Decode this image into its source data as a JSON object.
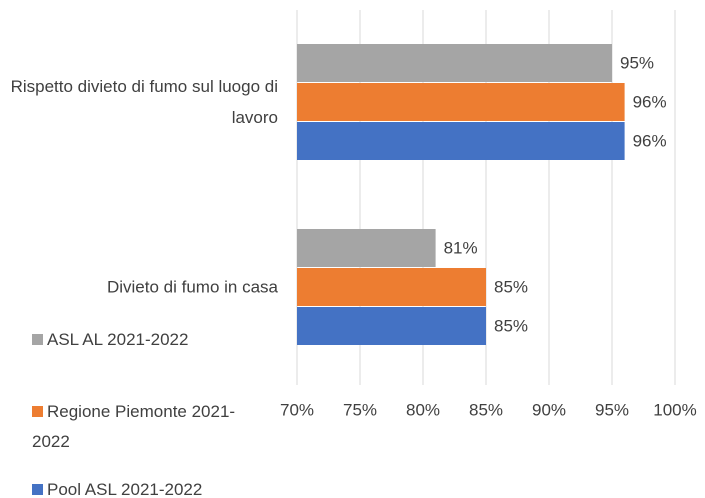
{
  "chart_data": {
    "type": "bar",
    "orientation": "horizontal",
    "categories": [
      "Rispetto divieto di fumo sul luogo di lavoro",
      "Divieto di fumo in casa"
    ],
    "series": [
      {
        "name": "ASL AL 2021-2022",
        "color": "#a5a5a5",
        "values": [
          95,
          81
        ],
        "value_labels": [
          "95%",
          "81%"
        ]
      },
      {
        "name": "Regione Piemonte 2021-2022",
        "color": "#ed7d31",
        "values": [
          96,
          85
        ],
        "value_labels": [
          "96%",
          "85%"
        ]
      },
      {
        "name": "Pool ASL 2021-2022",
        "color": "#4472c4",
        "values": [
          96,
          85
        ],
        "value_labels": [
          "96%",
          "85%"
        ]
      }
    ],
    "xlim": [
      70,
      100
    ],
    "xticks": [
      {
        "value": 70,
        "label": "70%"
      },
      {
        "value": 75,
        "label": "75%"
      },
      {
        "value": 80,
        "label": "80%"
      },
      {
        "value": 85,
        "label": "85%"
      },
      {
        "value": 90,
        "label": "90%"
      },
      {
        "value": 95,
        "label": "95%"
      },
      {
        "value": 100,
        "label": "100%"
      }
    ],
    "grid": true,
    "legend": "left"
  }
}
